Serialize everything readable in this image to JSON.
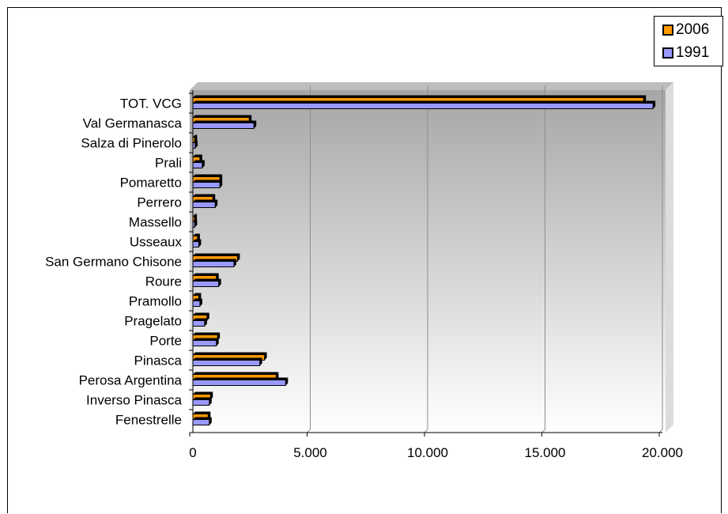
{
  "chart_data": {
    "type": "bar",
    "orientation": "horizontal",
    "categories": [
      "TOT. VCG",
      "Val Germanasca",
      "Salza di Pinerolo",
      "Prali",
      "Pomaretto",
      "Perrero",
      "Massello",
      "Usseaux",
      "San Germano Chisone",
      "Roure",
      "Pramollo",
      "Pragelato",
      "Porte",
      "Pinasca",
      "Perosa Argentina",
      "Inverso Pinasca",
      "Fenestrelle"
    ],
    "series": [
      {
        "name": "2006",
        "color": "#ff9900",
        "values": [
          19200,
          2400,
          80,
          300,
          1150,
          850,
          70,
          200,
          1900,
          1000,
          250,
          600,
          1050,
          3050,
          3550,
          750,
          650
        ]
      },
      {
        "name": "1991",
        "color": "#9999ff",
        "values": [
          19600,
          2600,
          100,
          400,
          1150,
          950,
          80,
          250,
          1750,
          1100,
          300,
          500,
          1000,
          2850,
          3950,
          700,
          700
        ]
      }
    ],
    "xlim": [
      0,
      20000
    ],
    "x_ticks": [
      "0",
      "5.000",
      "10.000",
      "15.000",
      "20.000"
    ],
    "grid": true,
    "legend_position": "top-right"
  }
}
